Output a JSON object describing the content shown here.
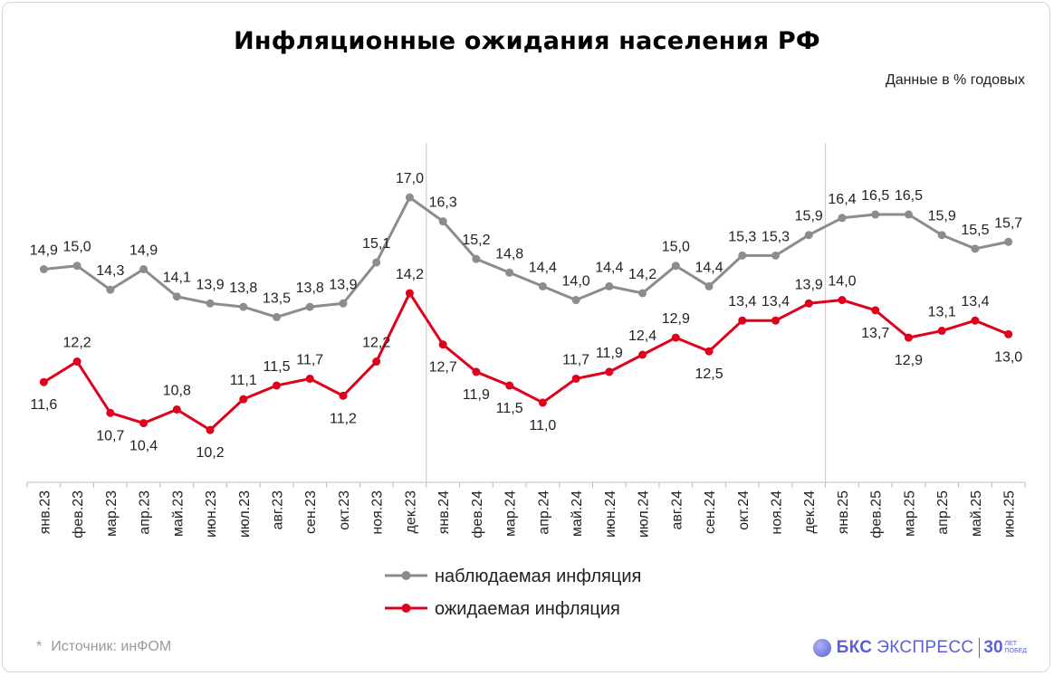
{
  "title": "Инфляционные ожидания населения РФ",
  "subtitle": "Данные в % годовых",
  "source": "Источник: инФОМ",
  "source_marker": "*",
  "brand": {
    "name": "БКС",
    "sub": "ЭКСПРЕСС",
    "years": "30",
    "years_top": "лет",
    "years_bottom": "побед",
    "color": "#5a5fd6"
  },
  "chart_data": {
    "type": "line",
    "categories": [
      "янв.23",
      "фев.23",
      "мар.23",
      "апр.23",
      "май.23",
      "июн.23",
      "июл.23",
      "авг.23",
      "сен.23",
      "окт.23",
      "ноя.23",
      "дек.23",
      "янв.24",
      "фев.24",
      "мар.24",
      "апр.24",
      "май.24",
      "июн.24",
      "июл.24",
      "авг.24",
      "сен.24",
      "окт.24",
      "ноя.24",
      "дек.24",
      "янв.25",
      "фев.25",
      "мар.25",
      "апр.25",
      "май.25",
      "июн.25"
    ],
    "series": [
      {
        "name": "наблюдаемая инфляция",
        "color": "#8c8c8c",
        "values": [
          14.9,
          15.0,
          14.3,
          14.9,
          14.1,
          13.9,
          13.8,
          13.5,
          13.8,
          13.9,
          15.1,
          17.0,
          16.3,
          15.2,
          14.8,
          14.4,
          14.0,
          14.4,
          14.2,
          15.0,
          14.4,
          15.3,
          15.3,
          15.9,
          16.4,
          16.5,
          16.5,
          15.9,
          15.5,
          15.7
        ],
        "labels": [
          "14,9",
          "15,0",
          "14,3",
          "14,9",
          "14,1",
          "13,9",
          "13,8",
          "13,5",
          "13,8",
          "13,9",
          "15,1",
          "17,0",
          "16,3",
          "15,2",
          "14,8",
          "14,4",
          "14,0",
          "14,4",
          "14,2",
          "15,0",
          "14,4",
          "15,3",
          "15,3",
          "15,9",
          "16,4",
          "16,5",
          "16,5",
          "15,9",
          "15,5",
          "15,7"
        ]
      },
      {
        "name": "ожидаемая инфляция",
        "color": "#e0001b",
        "values": [
          11.6,
          12.2,
          10.7,
          10.4,
          10.8,
          10.2,
          11.1,
          11.5,
          11.7,
          11.2,
          12.2,
          14.2,
          12.7,
          11.9,
          11.5,
          11.0,
          11.7,
          11.9,
          12.4,
          12.9,
          12.5,
          13.4,
          13.4,
          13.9,
          14.0,
          13.7,
          12.9,
          13.1,
          13.4,
          13.0
        ],
        "labels": [
          "11,6",
          "12,2",
          "10,7",
          "10,4",
          "10,8",
          "10,2",
          "11,1",
          "11,5",
          "11,7",
          "11,2",
          "12,2",
          "14,2",
          "12,7",
          "11,9",
          "11,5",
          "11,0",
          "11,7",
          "11,9",
          "12,4",
          "12,9",
          "12,5",
          "13,4",
          "13,4",
          "13,9",
          "14,0",
          "13,7",
          "12,9",
          "13,1",
          "13,4",
          "13,0"
        ]
      }
    ],
    "year_separators_after": [
      "дек.23",
      "дек.24"
    ],
    "legend_position": "bottom-center",
    "grid": false
  }
}
